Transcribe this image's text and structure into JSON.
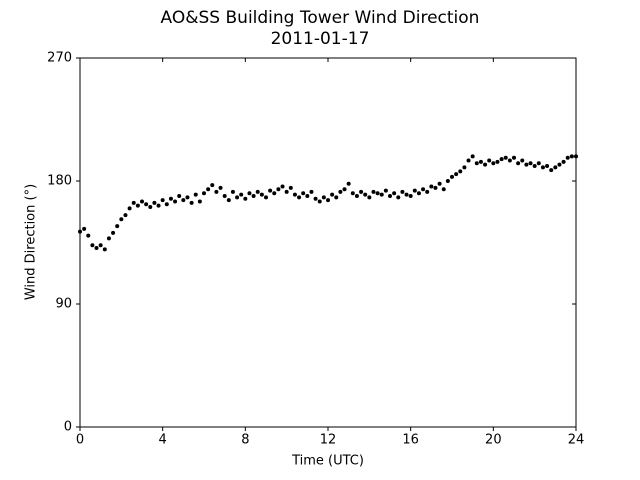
{
  "chart_data": {
    "type": "scatter",
    "title": "AO&SS Building Tower Wind Direction",
    "subtitle": "2011-01-17",
    "x_label": "Time (UTC)",
    "y_label": "Wind Direction (°)",
    "color": "#000000",
    "xlim": [
      0,
      24
    ],
    "xticks": [
      0,
      4,
      8,
      12,
      16,
      20,
      24
    ],
    "ylim": [
      0,
      270
    ],
    "yticks": [
      0,
      90,
      180,
      270
    ],
    "x": [
      0,
      0.2,
      0.4,
      0.6,
      0.8,
      1,
      1.2,
      1.4,
      1.6,
      1.8,
      2,
      2.2,
      2.4,
      2.6,
      2.8,
      3,
      3.2,
      3.4,
      3.6,
      3.8,
      4,
      4.2,
      4.4,
      4.6,
      4.8,
      5,
      5.2,
      5.4,
      5.6,
      5.8,
      6,
      6.2,
      6.4,
      6.6,
      6.8,
      7,
      7.2,
      7.4,
      7.6,
      7.8,
      8,
      8.2,
      8.4,
      8.6,
      8.8,
      9,
      9.2,
      9.4,
      9.6,
      9.8,
      10,
      10.2,
      10.4,
      10.6,
      10.8,
      11,
      11.2,
      11.4,
      11.6,
      11.8,
      12,
      12.2,
      12.4,
      12.6,
      12.8,
      13,
      13.2,
      13.4,
      13.6,
      13.8,
      14,
      14.2,
      14.4,
      14.6,
      14.8,
      15,
      15.2,
      15.4,
      15.6,
      15.8,
      16,
      16.2,
      16.4,
      16.6,
      16.8,
      17,
      17.2,
      17.4,
      17.6,
      17.8,
      18,
      18.2,
      18.4,
      18.6,
      18.8,
      19,
      19.2,
      19.4,
      19.6,
      19.8,
      20,
      20.2,
      20.4,
      20.6,
      20.8,
      21,
      21.2,
      21.4,
      21.6,
      21.8,
      22,
      22.2,
      22.4,
      22.6,
      22.8,
      23,
      23.2,
      23.4,
      23.6,
      23.8,
      24
    ],
    "values": [
      143,
      145,
      140,
      133,
      131,
      133,
      130,
      138,
      142,
      147,
      152,
      155,
      160,
      164,
      162,
      165,
      163,
      161,
      164,
      162,
      166,
      163,
      167,
      165,
      169,
      166,
      168,
      164,
      170,
      165,
      171,
      174,
      177,
      172,
      175,
      169,
      166,
      172,
      168,
      170,
      167,
      171,
      169,
      172,
      170,
      168,
      173,
      171,
      174,
      176,
      172,
      175,
      170,
      168,
      171,
      169,
      172,
      167,
      165,
      168,
      166,
      170,
      168,
      172,
      174,
      178,
      171,
      169,
      172,
      170,
      168,
      172,
      171,
      170,
      173,
      169,
      171,
      168,
      172,
      170,
      169,
      173,
      171,
      174,
      172,
      176,
      175,
      178,
      174,
      180,
      183,
      185,
      187,
      190,
      195,
      198,
      193,
      194,
      192,
      195,
      193,
      194,
      196,
      197,
      195,
      197,
      193,
      195,
      192,
      193,
      191,
      193,
      190,
      191,
      188,
      190,
      192,
      194,
      197,
      198,
      198
    ]
  }
}
